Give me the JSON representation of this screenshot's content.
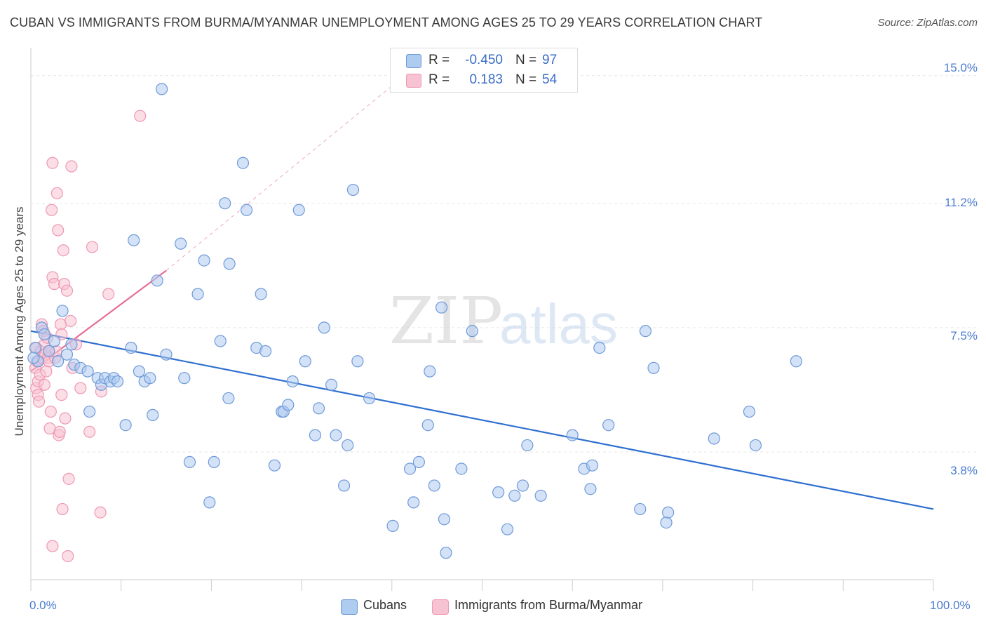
{
  "title": "CUBAN VS IMMIGRANTS FROM BURMA/MYANMAR UNEMPLOYMENT AMONG AGES 25 TO 29 YEARS CORRELATION CHART",
  "source": "Source: ZipAtlas.com",
  "watermark": "ZIPatlas",
  "colors": {
    "cubans_fill": "#aecbf0",
    "cubans_stroke": "#6e9ad8",
    "cubans_line": "#2f6fd0",
    "burma_fill": "#f7c3d2",
    "burma_stroke": "#ee98b4",
    "burma_line": "#e56d97",
    "tick_label": "#4a7bd0",
    "grid": "#e6e6e6"
  },
  "legend": {
    "rows": [
      {
        "r_label": "R =",
        "r_value": "-0.450",
        "n_label": "N =",
        "n_value": "97"
      },
      {
        "r_label": "R =",
        "r_value": "0.183",
        "n_label": "N =",
        "n_value": "54"
      }
    ]
  },
  "bottom_legend": {
    "cubans": "Cubans",
    "burma": "Immigrants from Burma/Myanmar"
  },
  "chart_data": {
    "type": "scatter",
    "title": "CUBAN VS IMMIGRANTS FROM BURMA/MYANMAR UNEMPLOYMENT AMONG AGES 25 TO 29 YEARS CORRELATION CHART",
    "xlabel": "",
    "ylabel": "Unemployment Among Ages 25 to 29 years",
    "xlim": [
      0,
      100
    ],
    "ylim": [
      0,
      15.6
    ],
    "y_ticks": [
      {
        "value": 15.0,
        "label": "15.0%"
      },
      {
        "value": 11.2,
        "label": "11.2%"
      },
      {
        "value": 7.5,
        "label": "7.5%"
      },
      {
        "value": 3.8,
        "label": "3.8%"
      }
    ],
    "x_tick_labels": [
      {
        "value": 0,
        "label": "0.0%"
      },
      {
        "value": 100,
        "label": "100.0%"
      }
    ],
    "x_minor_ticks": [
      0,
      10,
      20,
      30,
      40,
      50,
      60,
      70,
      80,
      90,
      100
    ],
    "series": [
      {
        "name": "Cubans",
        "r": -0.45,
        "n": 97,
        "trend": {
          "x": [
            0,
            100
          ],
          "y": [
            7.4,
            2.1
          ]
        },
        "points": [
          [
            0.5,
            6.9
          ],
          [
            0.8,
            6.5
          ],
          [
            1.2,
            7.5
          ],
          [
            1.5,
            7.3
          ],
          [
            2.0,
            6.8
          ],
          [
            2.6,
            7.1
          ],
          [
            3.0,
            6.5
          ],
          [
            3.5,
            8.0
          ],
          [
            4.0,
            6.7
          ],
          [
            4.5,
            7.0
          ],
          [
            4.8,
            6.4
          ],
          [
            5.5,
            6.3
          ],
          [
            6.3,
            6.2
          ],
          [
            6.5,
            5.0
          ],
          [
            7.4,
            6.0
          ],
          [
            7.8,
            5.8
          ],
          [
            8.2,
            6.0
          ],
          [
            8.8,
            5.9
          ],
          [
            9.2,
            6.0
          ],
          [
            9.6,
            5.9
          ],
          [
            10.5,
            4.6
          ],
          [
            11.1,
            6.9
          ],
          [
            11.4,
            10.1
          ],
          [
            12.0,
            6.2
          ],
          [
            12.6,
            5.9
          ],
          [
            13.2,
            6.0
          ],
          [
            13.5,
            4.9
          ],
          [
            14.0,
            8.9
          ],
          [
            14.5,
            14.6
          ],
          [
            15.0,
            6.7
          ],
          [
            16.6,
            10.0
          ],
          [
            17.0,
            6.0
          ],
          [
            17.6,
            3.5
          ],
          [
            18.5,
            8.5
          ],
          [
            19.2,
            9.5
          ],
          [
            19.8,
            2.3
          ],
          [
            20.3,
            3.5
          ],
          [
            21.0,
            7.1
          ],
          [
            21.5,
            11.2
          ],
          [
            21.9,
            5.4
          ],
          [
            22.0,
            9.4
          ],
          [
            23.5,
            12.4
          ],
          [
            23.9,
            11.0
          ],
          [
            25.0,
            6.9
          ],
          [
            25.5,
            8.5
          ],
          [
            26.0,
            6.8
          ],
          [
            27.0,
            3.4
          ],
          [
            27.8,
            5.0
          ],
          [
            28.0,
            5.0
          ],
          [
            28.5,
            5.2
          ],
          [
            29.0,
            5.9
          ],
          [
            29.7,
            11.0
          ],
          [
            30.4,
            6.5
          ],
          [
            31.5,
            4.3
          ],
          [
            31.9,
            5.1
          ],
          [
            32.5,
            7.5
          ],
          [
            33.3,
            5.8
          ],
          [
            33.8,
            4.3
          ],
          [
            34.7,
            2.8
          ],
          [
            35.1,
            4.0
          ],
          [
            35.7,
            11.6
          ],
          [
            36.2,
            6.5
          ],
          [
            37.5,
            5.4
          ],
          [
            40.1,
            1.6
          ],
          [
            42.0,
            3.3
          ],
          [
            42.4,
            2.3
          ],
          [
            43.0,
            3.5
          ],
          [
            44.0,
            4.6
          ],
          [
            44.2,
            6.2
          ],
          [
            44.7,
            2.8
          ],
          [
            45.5,
            8.1
          ],
          [
            45.8,
            1.8
          ],
          [
            46.0,
            0.8
          ],
          [
            47.7,
            3.3
          ],
          [
            48.9,
            7.4
          ],
          [
            51.8,
            2.6
          ],
          [
            52.8,
            1.5
          ],
          [
            53.6,
            2.5
          ],
          [
            54.5,
            2.8
          ],
          [
            55.0,
            4.0
          ],
          [
            56.5,
            2.5
          ],
          [
            60.0,
            4.3
          ],
          [
            61.3,
            3.3
          ],
          [
            62.0,
            2.7
          ],
          [
            62.2,
            3.4
          ],
          [
            63.0,
            6.9
          ],
          [
            64.0,
            4.6
          ],
          [
            67.5,
            2.1
          ],
          [
            68.1,
            7.4
          ],
          [
            69.0,
            6.3
          ],
          [
            70.4,
            1.7
          ],
          [
            70.6,
            2.0
          ],
          [
            75.7,
            4.2
          ],
          [
            79.6,
            5.0
          ],
          [
            80.3,
            4.0
          ],
          [
            84.8,
            6.5
          ],
          [
            0.3,
            6.6
          ]
        ]
      },
      {
        "name": "Immigrants from Burma/Myanmar",
        "r": 0.183,
        "n": 54,
        "trend": {
          "x": [
            0,
            15
          ],
          "y": [
            6.2,
            9.2
          ]
        },
        "trend_extension": {
          "x": [
            15,
            40.5
          ],
          "y": [
            9.2,
            14.8
          ]
        },
        "points": [
          [
            0.5,
            6.3
          ],
          [
            0.6,
            6.9
          ],
          [
            0.6,
            5.7
          ],
          [
            0.7,
            6.5
          ],
          [
            0.8,
            5.9
          ],
          [
            0.8,
            5.5
          ],
          [
            0.9,
            5.3
          ],
          [
            1.0,
            6.1
          ],
          [
            1.1,
            6.8
          ],
          [
            1.2,
            7.6
          ],
          [
            1.3,
            6.6
          ],
          [
            1.4,
            7.4
          ],
          [
            1.5,
            7.0
          ],
          [
            1.5,
            5.8
          ],
          [
            1.6,
            6.7
          ],
          [
            1.7,
            6.2
          ],
          [
            1.8,
            7.2
          ],
          [
            1.9,
            6.6
          ],
          [
            2.0,
            6.8
          ],
          [
            2.0,
            6.5
          ],
          [
            2.1,
            4.5
          ],
          [
            2.2,
            5.0
          ],
          [
            2.3,
            11.0
          ],
          [
            2.4,
            9.0
          ],
          [
            2.4,
            1.0
          ],
          [
            2.4,
            12.4
          ],
          [
            2.6,
            8.8
          ],
          [
            2.7,
            6.6
          ],
          [
            2.8,
            6.8
          ],
          [
            2.9,
            11.5
          ],
          [
            3.0,
            10.4
          ],
          [
            3.1,
            4.3
          ],
          [
            3.2,
            4.4
          ],
          [
            3.3,
            7.6
          ],
          [
            3.4,
            7.3
          ],
          [
            3.4,
            5.5
          ],
          [
            3.5,
            2.1
          ],
          [
            3.6,
            9.8
          ],
          [
            3.7,
            8.8
          ],
          [
            3.8,
            4.8
          ],
          [
            4.0,
            8.6
          ],
          [
            4.1,
            0.7
          ],
          [
            4.2,
            3.0
          ],
          [
            4.4,
            7.7
          ],
          [
            4.5,
            12.3
          ],
          [
            4.6,
            6.3
          ],
          [
            5.0,
            7.0
          ],
          [
            5.5,
            5.7
          ],
          [
            6.5,
            4.4
          ],
          [
            6.8,
            9.9
          ],
          [
            7.7,
            2.0
          ],
          [
            7.8,
            5.6
          ],
          [
            8.6,
            8.5
          ],
          [
            12.1,
            13.8
          ]
        ]
      }
    ]
  }
}
